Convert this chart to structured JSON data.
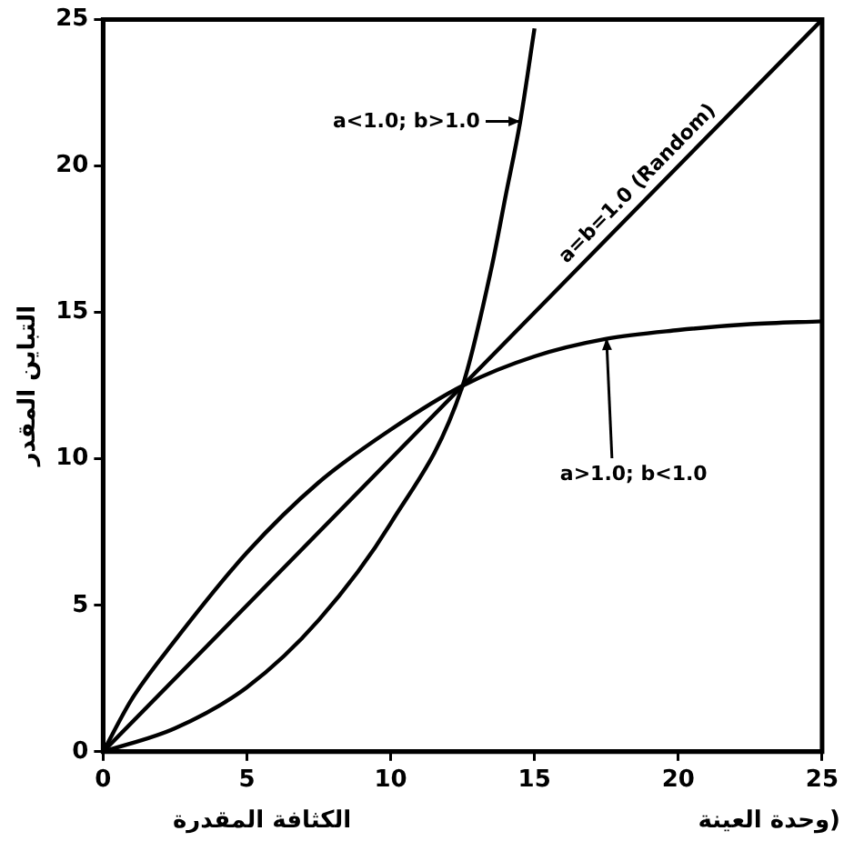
{
  "chart_data": {
    "type": "line",
    "xlabel": "الكثافة المقدرة",
    "ylabel": "التباين المقدر",
    "xlim": [
      0,
      25
    ],
    "xticks": [
      0,
      5,
      10,
      15,
      20,
      25
    ],
    "ylim": [
      0,
      25
    ],
    "yticks": [
      0,
      5,
      10,
      15,
      20,
      25
    ],
    "grid": false,
    "legend": false,
    "marker": "none",
    "line_style": "solid",
    "series": [
      {
        "color": "#000000",
        "x": [
          0,
          2.5,
          5,
          7.5,
          10,
          12.5,
          13.5,
          14,
          14.5,
          15
        ],
        "values": [
          0,
          0.8,
          2.2,
          4.5,
          7.8,
          12.5,
          16.5,
          19,
          21.5,
          24.7
        ]
      },
      {
        "color": "#000000",
        "x": [
          0,
          25
        ],
        "values": [
          0,
          25
        ]
      },
      {
        "color": "#000000",
        "x": [
          0,
          1,
          2.5,
          5,
          7.5,
          10,
          12.5,
          15,
          17.5,
          20,
          22.5,
          25
        ],
        "values": [
          0,
          1.8,
          3.8,
          6.8,
          9.2,
          11,
          12.5,
          13.5,
          14.1,
          14.4,
          14.6,
          14.7
        ]
      }
    ],
    "annotations": [
      {
        "text": "a<1.0; b>1.0",
        "x": 14.5,
        "y": 21.5
      },
      {
        "text": "a=b=1.0 (Random)",
        "x": 19,
        "y": 19
      },
      {
        "text": "a>1.0; b<1.0",
        "x": 17.5,
        "y": 14.1
      },
      "وحدة العينة)"
    ]
  }
}
